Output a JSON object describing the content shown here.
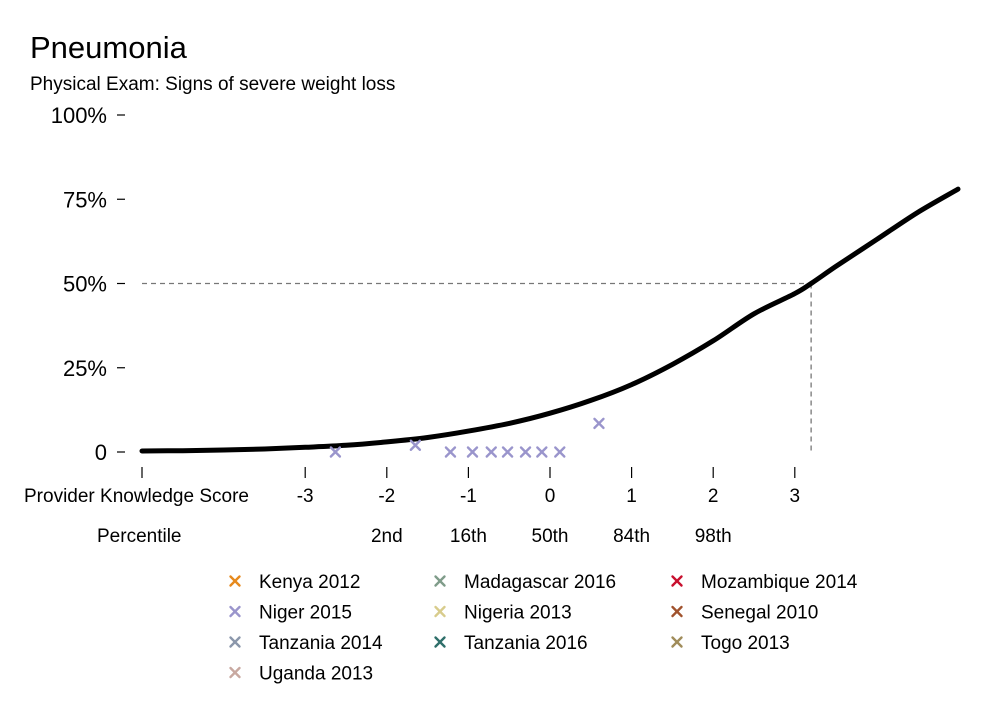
{
  "chart_data": {
    "type": "line",
    "title": "Pneumonia",
    "subtitle": "Physical Exam: Signs of severe weight loss",
    "xlabel": "Provider Knowledge Score",
    "secondary_xlabel": "Percentile",
    "xlim": [
      -5,
      5
    ],
    "ylim": [
      0,
      1
    ],
    "y_ticks": [
      {
        "value": 0,
        "label": "0"
      },
      {
        "value": 0.25,
        "label": "25%"
      },
      {
        "value": 0.5,
        "label": "50%"
      },
      {
        "value": 0.75,
        "label": "75%"
      },
      {
        "value": 1.0,
        "label": "100%"
      }
    ],
    "x_ticks": [
      {
        "value": -5,
        "label": ""
      },
      {
        "value": -3,
        "label": "-3"
      },
      {
        "value": -2,
        "label": "-2"
      },
      {
        "value": -1,
        "label": "-1"
      },
      {
        "value": 0,
        "label": "0"
      },
      {
        "value": 1,
        "label": "1"
      },
      {
        "value": 2,
        "label": "2"
      },
      {
        "value": 3,
        "label": "3"
      }
    ],
    "percentile_ticks": [
      {
        "value": -2,
        "label": "2nd"
      },
      {
        "value": -1,
        "label": "16th"
      },
      {
        "value": 0,
        "label": "50th"
      },
      {
        "value": 1,
        "label": "84th"
      },
      {
        "value": 2,
        "label": "98th"
      }
    ],
    "curve": {
      "x": [
        -5.0,
        -4.5,
        -4.0,
        -3.5,
        -3.0,
        -2.5,
        -2.0,
        -1.5,
        -1.0,
        -0.5,
        0.0,
        0.5,
        1.0,
        1.5,
        2.0,
        2.5,
        3.0,
        3.2,
        3.5,
        4.0,
        4.5,
        5.0
      ],
      "y": [
        0.003,
        0.004,
        0.006,
        0.009,
        0.014,
        0.02,
        0.03,
        0.043,
        0.062,
        0.085,
        0.115,
        0.153,
        0.2,
        0.26,
        0.33,
        0.41,
        0.47,
        0.5,
        0.55,
        0.63,
        0.71,
        0.78
      ]
    },
    "reference": {
      "x": 3.2,
      "y": 0.5
    },
    "series": [
      {
        "name": "Kenya 2012",
        "color": "#e6891d",
        "points": []
      },
      {
        "name": "Madagascar 2016",
        "color": "#7f9c8a",
        "points": []
      },
      {
        "name": "Mozambique 2014",
        "color": "#c8102e",
        "points": []
      },
      {
        "name": "Niger 2015",
        "color": "#9a95cc",
        "points": [
          {
            "x": -2.63,
            "y": 0.0
          },
          {
            "x": -1.65,
            "y": 0.02
          },
          {
            "x": -1.22,
            "y": 0.0
          },
          {
            "x": -0.95,
            "y": 0.0
          },
          {
            "x": -0.72,
            "y": 0.0
          },
          {
            "x": -0.52,
            "y": 0.0
          },
          {
            "x": -0.3,
            "y": 0.0
          },
          {
            "x": -0.1,
            "y": 0.0
          },
          {
            "x": 0.12,
            "y": 0.0
          },
          {
            "x": 0.6,
            "y": 0.085
          }
        ]
      },
      {
        "name": "Nigeria 2013",
        "color": "#d8cc8c",
        "points": []
      },
      {
        "name": "Senegal 2010",
        "color": "#a0522d",
        "points": []
      },
      {
        "name": "Tanzania 2014",
        "color": "#8b97ab",
        "points": []
      },
      {
        "name": "Tanzania 2016",
        "color": "#2f6f6a",
        "points": []
      },
      {
        "name": "Togo 2013",
        "color": "#a08c5a",
        "points": []
      },
      {
        "name": "Uganda 2013",
        "color": "#c8a8a0",
        "points": []
      }
    ],
    "legend_placement": "bottom",
    "grid": false
  }
}
